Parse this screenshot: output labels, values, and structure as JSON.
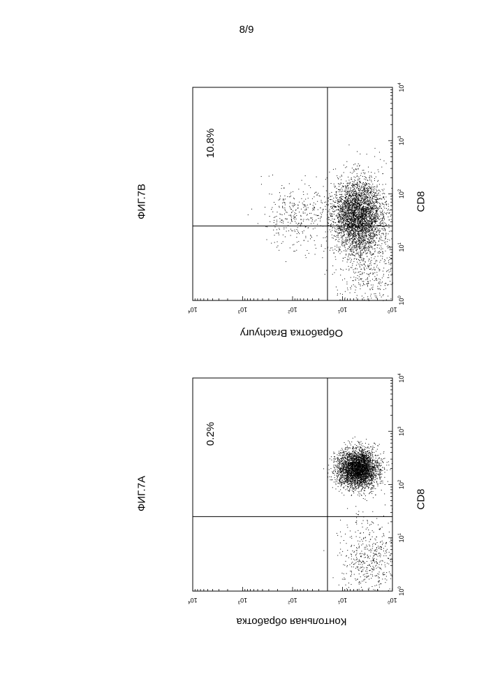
{
  "page": {
    "header": "8/9"
  },
  "chart_data": [
    {
      "type": "scatter",
      "title": "ФИГ.7В",
      "xlabel": "CD8",
      "ylabel": "Обработка Brachyury",
      "x_scale": "log",
      "y_scale": "log",
      "xlim": [
        1,
        10000
      ],
      "ylim": [
        1,
        10000
      ],
      "x_tick_labels": [
        "10^0",
        "10^1",
        "10^2",
        "10^3",
        "10^4"
      ],
      "y_tick_labels": [
        "10^0",
        "10^1",
        "10^2",
        "10^3",
        "10^4"
      ],
      "quadrant_gate": {
        "x": 25,
        "y": 20
      },
      "annotation": "10.8%",
      "population": {
        "x_center": 40,
        "y_center": 5,
        "x_spread_decades": 0.35,
        "y_spread_decades": 0.25
      },
      "secondary_population": {
        "x_center": 4,
        "y_center": 3,
        "x_spread_decades": 0.45,
        "y_spread_decades": 0.3
      }
    },
    {
      "type": "scatter",
      "title": "ФИГ.7А",
      "xlabel": "CD8",
      "ylabel": "Контольная обработка",
      "x_scale": "log",
      "y_scale": "log",
      "xlim": [
        1,
        10000
      ],
      "ylim": [
        1,
        10000
      ],
      "x_tick_labels": [
        "10^0",
        "10^1",
        "10^2",
        "10^3",
        "10^4"
      ],
      "y_tick_labels": [
        "10^0",
        "10^1",
        "10^2",
        "10^3",
        "10^4"
      ],
      "quadrant_gate": {
        "x": 25,
        "y": 20
      },
      "annotation": "0.2%",
      "population": {
        "x_center": 200,
        "y_center": 5,
        "x_spread_decades": 0.18,
        "y_spread_decades": 0.2
      },
      "secondary_population": {
        "x_center": 4,
        "y_center": 3,
        "x_spread_decades": 0.4,
        "y_spread_decades": 0.3
      }
    }
  ]
}
